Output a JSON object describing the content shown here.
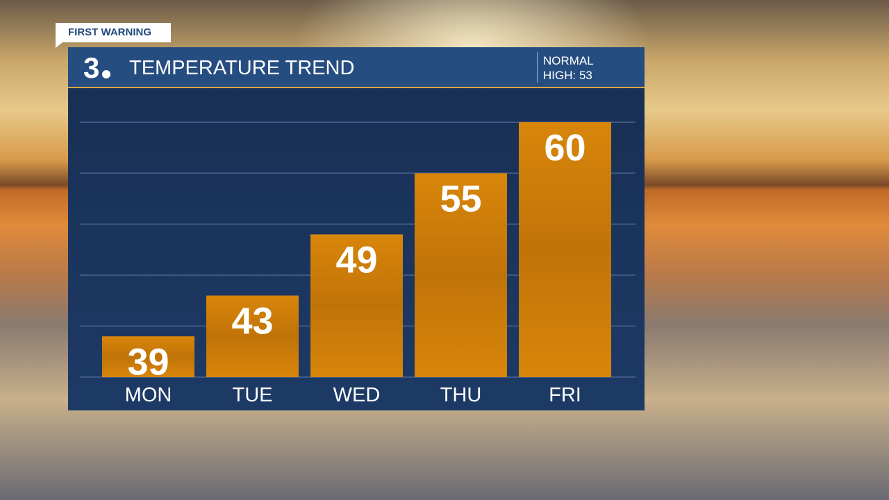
{
  "badge": "FIRST WARNING",
  "header": {
    "logo": "3",
    "title": "TEMPERATURE TREND",
    "normal_label": "NORMAL",
    "normal_value": "HIGH: 53"
  },
  "colors": {
    "bar": "#d08008",
    "panel": "#1d3a66",
    "header": "#264d80"
  },
  "chart_data": {
    "type": "bar",
    "categories": [
      "MON",
      "TUE",
      "WED",
      "THU",
      "FRI"
    ],
    "values": [
      39,
      43,
      49,
      55,
      60
    ],
    "ylim": [
      35,
      60
    ],
    "grid": true,
    "title": "",
    "xlabel": "",
    "ylabel": ""
  }
}
